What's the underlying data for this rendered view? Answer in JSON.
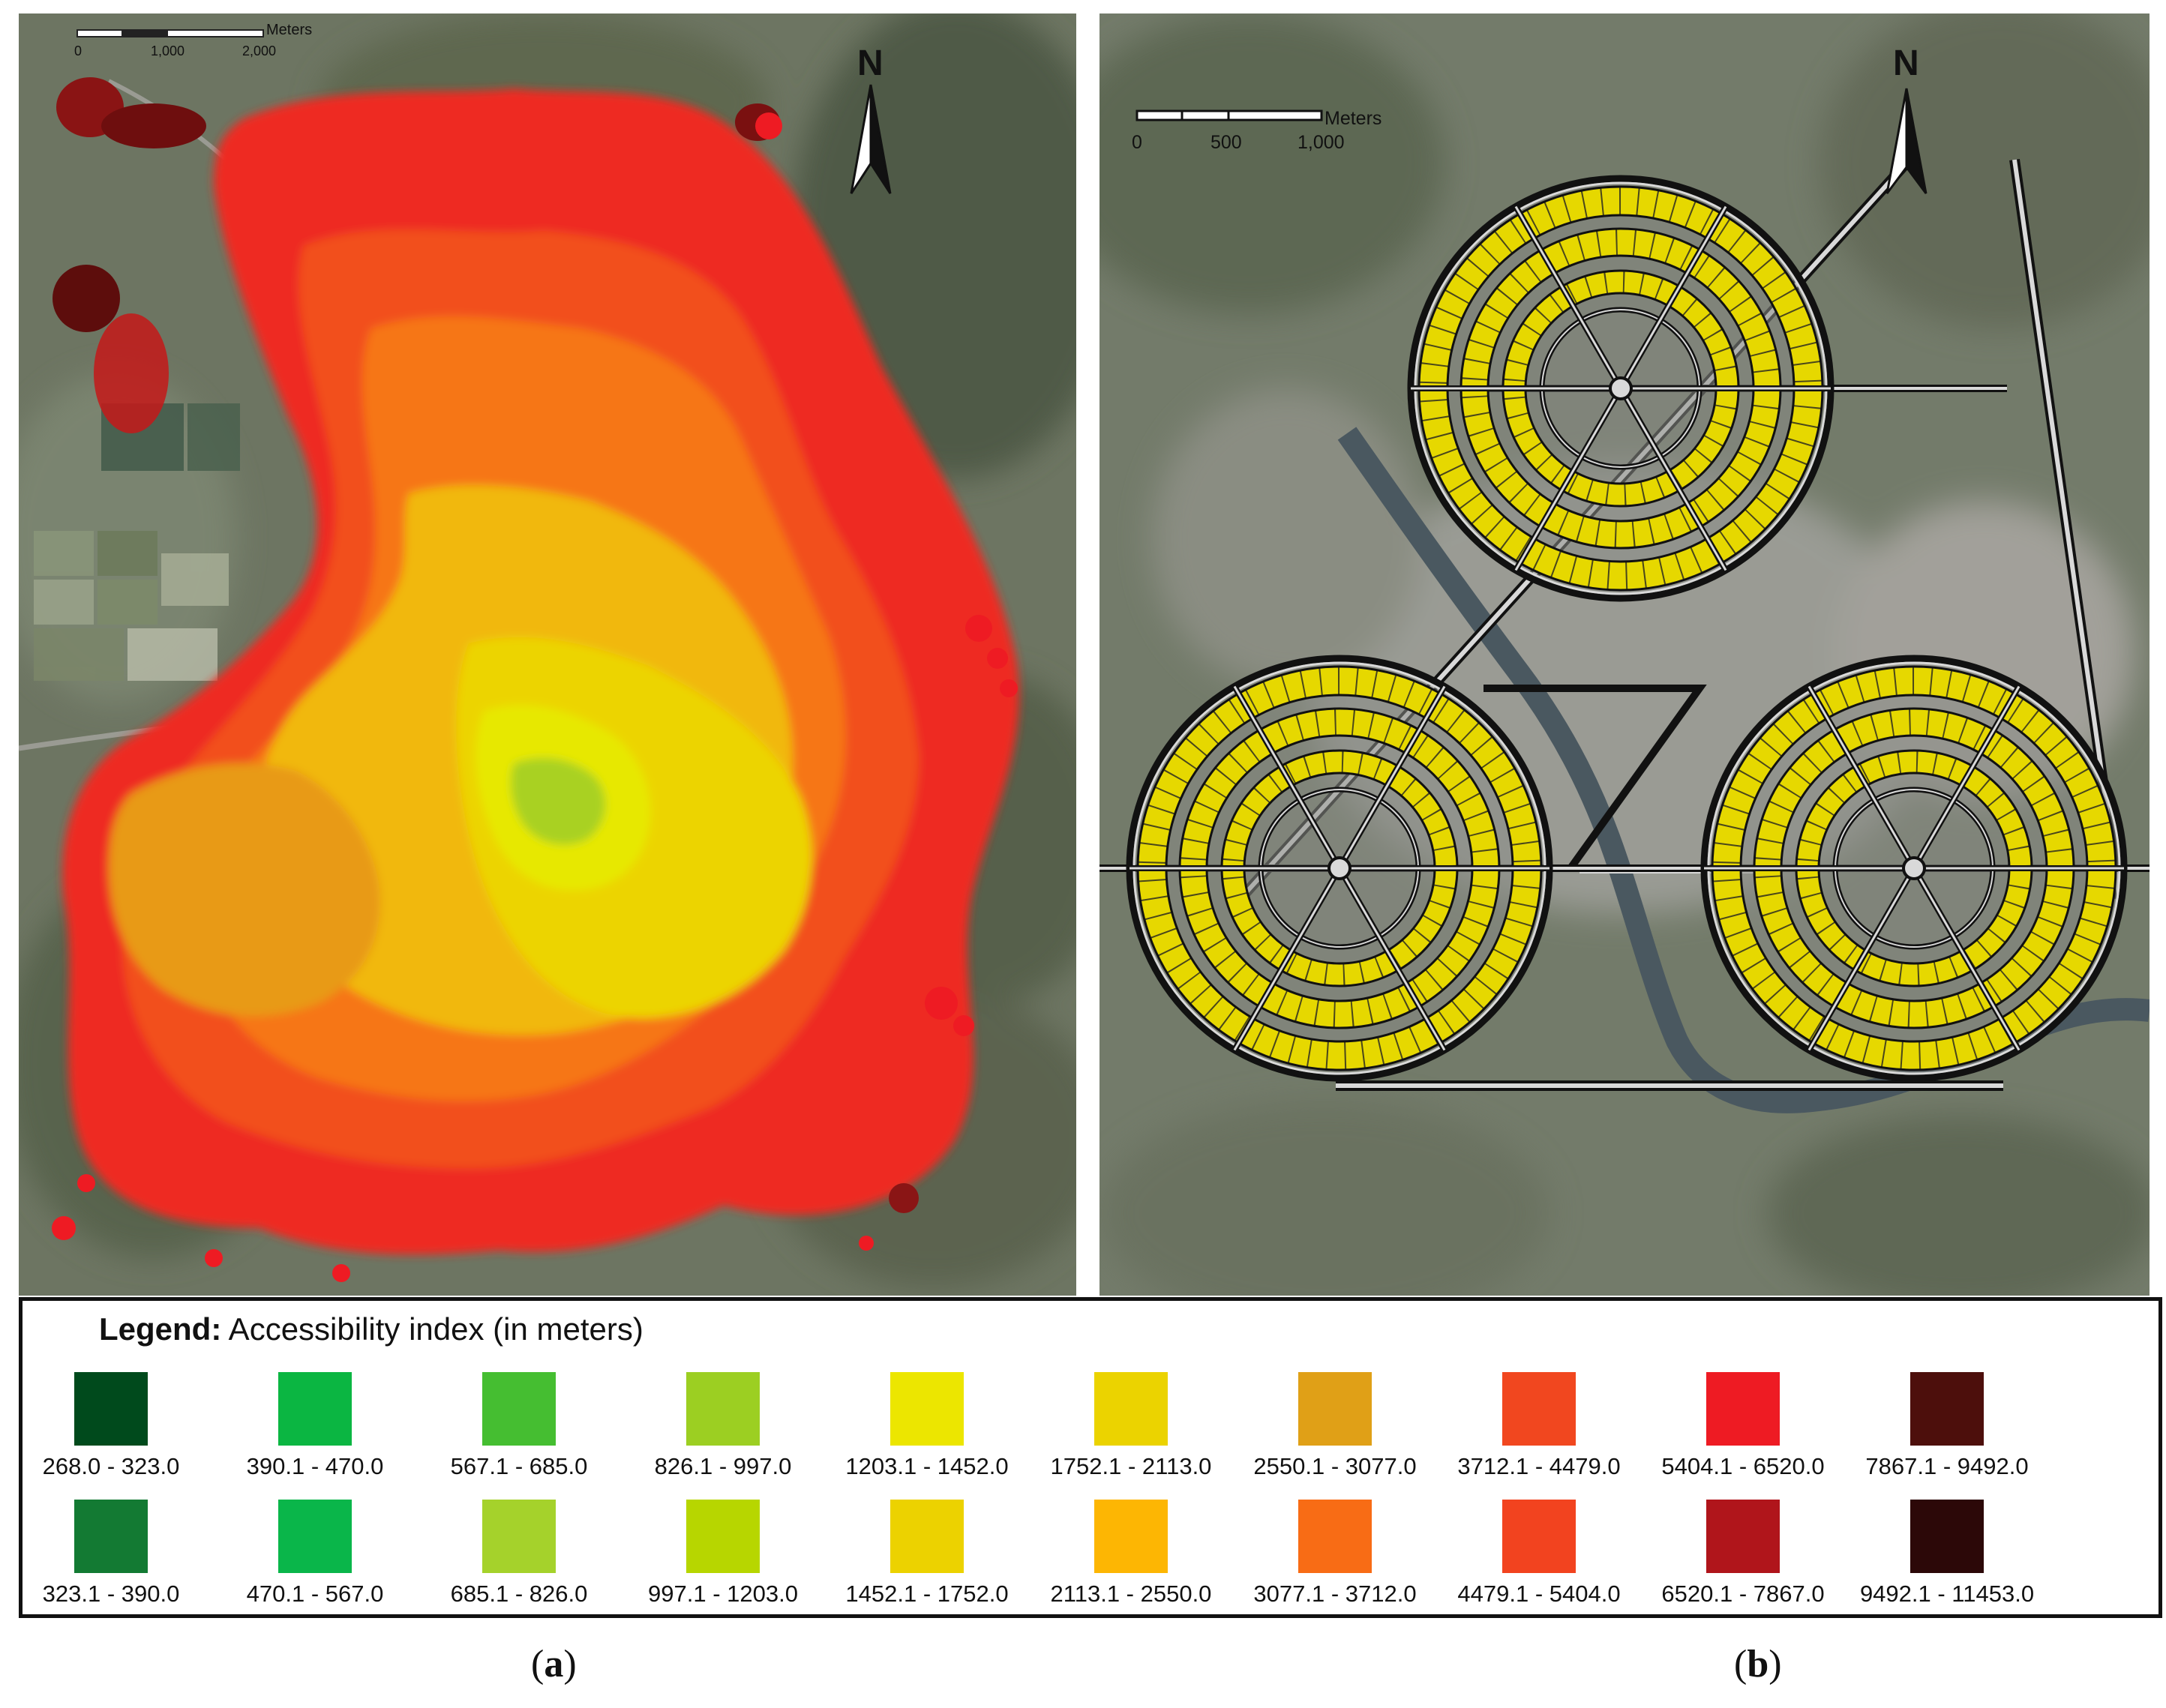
{
  "panel_a": {
    "scale_unit": "Meters",
    "scale_ticks": [
      "0",
      "1,000",
      "2,000"
    ],
    "north_label": "N",
    "caption": {
      "open": "(",
      "letter": "a",
      "close": ")"
    }
  },
  "panel_b": {
    "scale_unit": "Meters",
    "scale_ticks": [
      "0",
      "500",
      "1,000"
    ],
    "north_label": "N",
    "caption": {
      "open": "(",
      "letter": "b",
      "close": ")"
    }
  },
  "legend": {
    "title_bold": "Legend:",
    "title_rest": " Accessibility index (in meters)",
    "items": [
      {
        "label": "268.0 - 323.0",
        "color": "#004a1c"
      },
      {
        "label": "390.1 - 470.0",
        "color": "#0bb642"
      },
      {
        "label": "567.1 - 685.0",
        "color": "#45be31"
      },
      {
        "label": "826.1 - 997.0",
        "color": "#9ccf22"
      },
      {
        "label": "1203.1 - 1452.0",
        "color": "#ece600"
      },
      {
        "label": "1752.1 - 2113.0",
        "color": "#ebd300"
      },
      {
        "label": "2550.1 - 3077.0",
        "color": "#e0a017"
      },
      {
        "label": "3712.1 - 4479.0",
        "color": "#f1471f"
      },
      {
        "label": "5404.1 - 6520.0",
        "color": "#ee1b23"
      },
      {
        "label": "7867.1 - 9492.0",
        "color": "#4d0f0c"
      },
      {
        "label": "323.1 - 390.0",
        "color": "#137a33"
      },
      {
        "label": "470.1 - 567.0",
        "color": "#0ab64a"
      },
      {
        "label": "685.1 - 826.0",
        "color": "#a5d22b"
      },
      {
        "label": "997.1 - 1203.0",
        "color": "#b7d600"
      },
      {
        "label": "1452.1 - 1752.0",
        "color": "#ecd200"
      },
      {
        "label": "2113.1 - 2550.0",
        "color": "#fdb603"
      },
      {
        "label": "3077.1 - 3712.0",
        "color": "#f86c15"
      },
      {
        "label": "4479.1 - 5404.0",
        "color": "#f2431f"
      },
      {
        "label": "6520.1 - 7867.0",
        "color": "#b0151b"
      },
      {
        "label": "9492.1 - 11453.0",
        "color": "#2c0808"
      }
    ]
  },
  "colors": {
    "imagery_base": "#6b7461",
    "urban": "#8f9189",
    "river": "#42505a",
    "road_outline": "#1a1a1a",
    "road_fill": "#d9d9d9",
    "block_fill": "#e6d800"
  }
}
